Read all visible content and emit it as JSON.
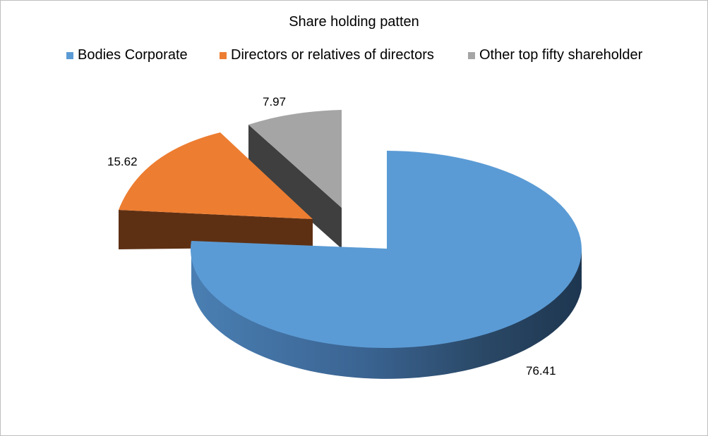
{
  "chart_data": {
    "type": "pie",
    "title": "Share holding patten",
    "legend_position": "top",
    "style": "3d-exploded",
    "slices": [
      {
        "label": "Bodies Corporate",
        "value": 76.41,
        "data_label": "76.41",
        "color": "#5b9bd5"
      },
      {
        "label": "Directors or relatives of directors",
        "value": 15.62,
        "data_label": "15.62",
        "color": "#ed7d31"
      },
      {
        "label": "Other top fifty shareholder",
        "value": 7.97,
        "data_label": "7.97",
        "color": "#a5a5a5"
      }
    ]
  }
}
